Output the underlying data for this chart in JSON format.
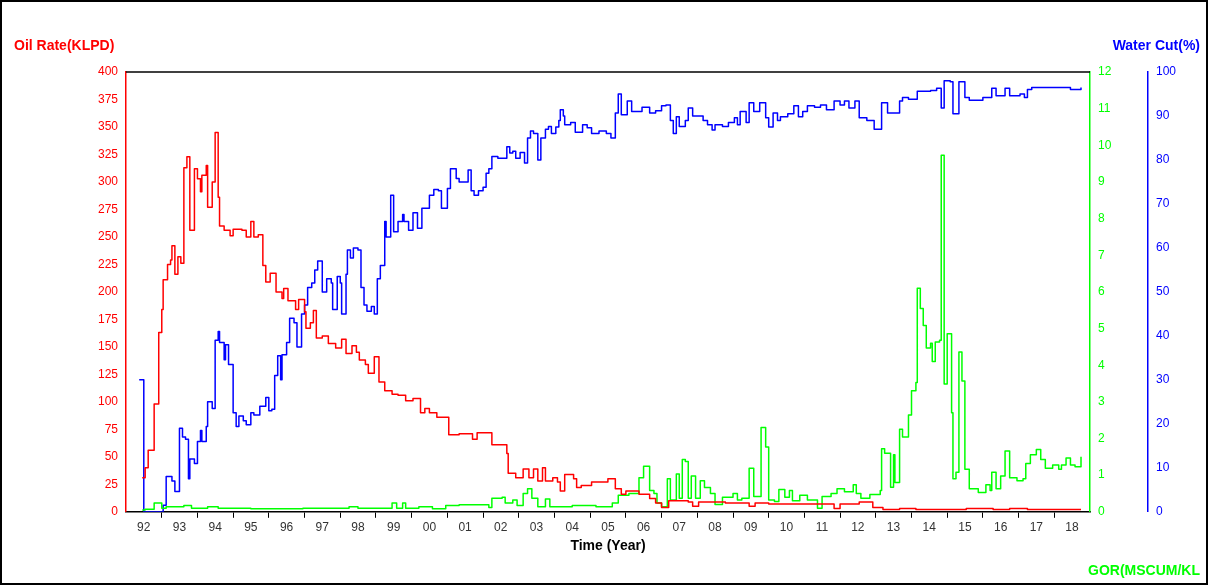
{
  "chart_data": {
    "type": "step",
    "xlabel": "Time (Year)",
    "ylabel": "Oil Rate(KLPD)",
    "y2label": "GOR(MSCUM/KL",
    "y3label": "Water Cut(%)",
    "xlim": [
      "1992",
      "2019"
    ],
    "xticks": [
      {
        "value": "1992-07",
        "label": "92"
      },
      {
        "value": "1993",
        "label": null
      },
      {
        "value": "1993-07",
        "label": "93"
      },
      {
        "value": "1994",
        "label": null
      },
      {
        "value": "1994-07",
        "label": "94"
      },
      {
        "value": "1995",
        "label": null
      },
      {
        "value": "1995-07",
        "label": "95"
      },
      {
        "value": "1996",
        "label": null
      },
      {
        "value": "1996-07",
        "label": "96"
      },
      {
        "value": "1997",
        "label": null
      },
      {
        "value": "1997-07",
        "label": "97"
      },
      {
        "value": "1998",
        "label": null
      },
      {
        "value": "1998-07",
        "label": "98"
      },
      {
        "value": "1999",
        "label": null
      },
      {
        "value": "1999-07",
        "label": "99"
      },
      {
        "value": "2000",
        "label": null
      },
      {
        "value": "2000-07",
        "label": "00"
      },
      {
        "value": "2001",
        "label": null
      },
      {
        "value": "2001-07",
        "label": "01"
      },
      {
        "value": "2002",
        "label": null
      },
      {
        "value": "2002-07",
        "label": "02"
      },
      {
        "value": "2003",
        "label": null
      },
      {
        "value": "2003-07",
        "label": "03"
      },
      {
        "value": "2004",
        "label": null
      },
      {
        "value": "2004-07",
        "label": "04"
      },
      {
        "value": "2005",
        "label": null
      },
      {
        "value": "2005-07",
        "label": "05"
      },
      {
        "value": "2006",
        "label": null
      },
      {
        "value": "2006-07",
        "label": "06"
      },
      {
        "value": "2007",
        "label": null
      },
      {
        "value": "2007-07",
        "label": "07"
      },
      {
        "value": "2008",
        "label": null
      },
      {
        "value": "2008-07",
        "label": "08"
      },
      {
        "value": "2009",
        "label": null
      },
      {
        "value": "2009-07",
        "label": "09"
      },
      {
        "value": "2010",
        "label": null
      },
      {
        "value": "2010-07",
        "label": "10"
      },
      {
        "value": "2011",
        "label": null
      },
      {
        "value": "2011-07",
        "label": "11"
      },
      {
        "value": "2012",
        "label": null
      },
      {
        "value": "2012-07",
        "label": "12"
      },
      {
        "value": "2013",
        "label": null
      },
      {
        "value": "2013-07",
        "label": "13"
      },
      {
        "value": "2014",
        "label": null
      },
      {
        "value": "2014-07",
        "label": "14"
      },
      {
        "value": "2015",
        "label": null
      },
      {
        "value": "2015-07",
        "label": "15"
      },
      {
        "value": "2016",
        "label": null
      },
      {
        "value": "2016-07",
        "label": "16"
      },
      {
        "value": "2017",
        "label": null
      },
      {
        "value": "2017-07",
        "label": "17"
      },
      {
        "value": "2018",
        "label": null
      },
      {
        "value": "2018-07",
        "label": "18"
      }
    ],
    "ylim": [
      0,
      400
    ],
    "yticks": [
      0,
      25,
      50,
      75,
      100,
      125,
      150,
      175,
      200,
      225,
      250,
      275,
      300,
      325,
      350,
      375,
      400
    ],
    "y2lim": [
      0,
      12
    ],
    "y2ticks": [
      0,
      1,
      2,
      3,
      4,
      5,
      6,
      7,
      8,
      9,
      10,
      11,
      12
    ],
    "y3lim": [
      0,
      100
    ],
    "y3ticks": [
      0,
      10,
      20,
      30,
      40,
      50,
      60,
      70,
      80,
      90,
      100
    ],
    "series": [
      {
        "color": "#ff0000",
        "axis": "y",
        "x": [
          "1992-06-15",
          "1992-07-15",
          "1992-08-15",
          "1992-10-15",
          "1992-12-01",
          "1993-01-01",
          "1993-01-15",
          "1993-03-01",
          "1993-04-01",
          "1993-04-15",
          "1993-05-15",
          "1993-06-15",
          "1993-07-15",
          "1993-08-15",
          "1993-09-15",
          "1993-10-15",
          "1993-12-01",
          "1994-01-01",
          "1994-02-01",
          "1994-02-15",
          "1994-04-01",
          "1994-04-15",
          "1994-06-01",
          "1994-07-01",
          "1994-08-01",
          "1994-08-15",
          "1994-10-01",
          "1994-12-01",
          "1995-01-01",
          "1995-04-01",
          "1995-05-15",
          "1995-07-01",
          "1995-08-01",
          "1995-09-15",
          "1995-11-01",
          "1995-12-01",
          "1996-01-15",
          "1996-03-15",
          "1996-05-15",
          "1996-06-01",
          "1996-07-15",
          "1996-10-01",
          "1996-11-01",
          "1997-01-01",
          "1997-01-15",
          "1997-03-01",
          "1997-04-01",
          "1997-05-01",
          "1997-07-01",
          "1997-09-01",
          "1997-11-15",
          "1998-01-15",
          "1998-03-01",
          "1998-05-01",
          "1998-06-15",
          "1998-07-15",
          "1998-09-15",
          "1998-10-15",
          "1998-12-15",
          "1999-02-01",
          "1999-04-01",
          "1999-06-15",
          "1999-08-15",
          "1999-11-01",
          "2000-01-15",
          "2000-04-01",
          "2000-05-15",
          "2000-07-01",
          "2000-09-15",
          "2001-01-15",
          "2001-05-01",
          "2001-09-15",
          "2001-11-01",
          "2002-04-01",
          "2002-09-01",
          "2002-09-15",
          "2002-12-01",
          "2003-02-15",
          "2003-04-15",
          "2003-06-01",
          "2003-07-15",
          "2003-09-01",
          "2003-10-01",
          "2003-12-15",
          "2004-02-01",
          "2004-03-01",
          "2004-04-15",
          "2004-07-15",
          "2004-08-15",
          "2004-10-01",
          "2005-01-15",
          "2005-07-01",
          "2005-09-15",
          "2005-11-15",
          "2006-01-01",
          "2006-05-15",
          "2006-09-01",
          "2006-11-01",
          "2007-01-01",
          "2007-03-15",
          "2007-10-01",
          "2007-11-15",
          "2008-01-15",
          "2008-10-15",
          "2009-06-15",
          "2009-08-15",
          "2010-01-01",
          "2011-11-01",
          "2012-01-01",
          "2012-07-15",
          "2012-12-01",
          "2013-03-15",
          "2013-09-01",
          "2014-02-15",
          "2015-07-15",
          "2016-04-15",
          "2016-10-01",
          "2017-04-01",
          "2018-10-01"
        ],
        "values": [
          31,
          40,
          56,
          98,
          163,
          184,
          211,
          225,
          229,
          242,
          216,
          232,
          226,
          313,
          323,
          256,
          312,
          303,
          291,
          306,
          315,
          277,
          300,
          345,
          286,
          260,
          256,
          251,
          257,
          256,
          250,
          264,
          250,
          252,
          224,
          209,
          217,
          200,
          194,
          203,
          192,
          184,
          193,
          182,
          167,
          172,
          183,
          158,
          160,
          153,
          149,
          157,
          144,
          151,
          145,
          138,
          134,
          126,
          141,
          118,
          110,
          107,
          106,
          101,
          103,
          90,
          94,
          90,
          86,
          70,
          71,
          66,
          72,
          61,
          53,
          35,
          31,
          39,
          31,
          39,
          28,
          40,
          28,
          31,
          27,
          19,
          34,
          30,
          22,
          24,
          27,
          30,
          21,
          16,
          19,
          16,
          12,
          8,
          4,
          10,
          9,
          5,
          9,
          8,
          5,
          8,
          7,
          3,
          7,
          9,
          4,
          2,
          3,
          2,
          3,
          2,
          3,
          2,
          2
        ]
      },
      {
        "color": "#00ff00",
        "axis": "y2",
        "x": [
          "1992-06-15",
          "1992-07-15",
          "1992-10-15",
          "1993-01-01",
          "1993-02-15",
          "1993-08-15",
          "1993-11-01",
          "1994-04-15",
          "1994-08-01",
          "1995-07-01",
          "1996-12-15",
          "1998-04-01",
          "1998-07-01",
          "1999-06-15",
          "1999-08-01",
          "1999-10-01",
          "1999-11-01",
          "2000-03-15",
          "2000-08-01",
          "2000-12-15",
          "2001-05-01",
          "2002-03-01",
          "2002-04-01",
          "2002-07-15",
          "2002-08-15",
          "2002-11-01",
          "2002-12-15",
          "2003-02-15",
          "2003-04-01",
          "2003-05-15",
          "2003-07-15",
          "2003-10-01",
          "2003-11-15",
          "2004-07-01",
          "2005-03-01",
          "2005-08-15",
          "2005-10-15",
          "2006-02-01",
          "2006-05-15",
          "2006-07-01",
          "2006-09-01",
          "2006-10-15",
          "2006-11-15",
          "2007-01-01",
          "2007-03-01",
          "2007-04-01",
          "2007-06-01",
          "2007-07-01",
          "2007-08-01",
          "2007-09-01",
          "2007-10-01",
          "2007-11-01",
          "2007-12-15",
          "2008-02-01",
          "2008-03-15",
          "2008-05-15",
          "2008-07-01",
          "2008-09-15",
          "2009-01-01",
          "2009-02-15",
          "2009-04-01",
          "2009-06-15",
          "2009-08-01",
          "2009-10-15",
          "2009-12-01",
          "2010-01-01",
          "2010-03-01",
          "2010-04-15",
          "2010-06-15",
          "2010-08-01",
          "2010-09-01",
          "2010-11-15",
          "2011-02-01",
          "2011-05-15",
          "2011-07-01",
          "2011-10-01",
          "2011-12-01",
          "2012-02-15",
          "2012-05-15",
          "2012-06-15",
          "2012-08-01",
          "2012-11-01",
          "2013-02-15",
          "2013-03-01",
          "2013-04-01",
          "2013-06-01",
          "2013-07-01",
          "2013-07-15",
          "2013-09-01",
          "2013-10-01",
          "2013-12-01",
          "2014-01-01",
          "2014-02-15",
          "2014-03-01",
          "2014-04-01",
          "2014-05-01",
          "2014-06-01",
          "2014-07-15",
          "2014-08-01",
          "2014-09-01",
          "2014-10-15",
          "2014-11-01",
          "2014-12-01",
          "2015-01-01",
          "2015-02-15",
          "2015-03-01",
          "2015-04-01",
          "2015-05-01",
          "2015-06-01",
          "2015-07-01",
          "2015-08-15",
          "2015-11-15",
          "2016-02-01",
          "2016-03-15",
          "2016-04-01",
          "2016-05-15",
          "2016-07-01",
          "2016-08-15",
          "2016-10-01",
          "2016-12-15",
          "2017-02-15",
          "2017-03-15",
          "2017-05-01",
          "2017-07-01",
          "2017-08-15",
          "2017-10-01",
          "2017-12-15",
          "2018-02-15",
          "2018-03-15",
          "2018-05-01",
          "2018-06-15",
          "2018-08-01",
          "2018-10-01"
        ],
        "values": [
          0.05,
          0.07,
          0.24,
          0.1,
          0.14,
          0.17,
          0.1,
          0.14,
          0.1,
          0.08,
          0.1,
          0.14,
          0.1,
          0.24,
          0.1,
          0.24,
          0.1,
          0.14,
          0.08,
          0.17,
          0.19,
          0.12,
          0.37,
          0.4,
          0.24,
          0.32,
          0.17,
          0.5,
          0.63,
          0.37,
          0.14,
          0.35,
          0.14,
          0.17,
          0.14,
          0.24,
          0.45,
          0.5,
          0.93,
          1.24,
          0.58,
          0.5,
          0.24,
          0.14,
          0.9,
          0.32,
          1.03,
          0.37,
          1.43,
          1.37,
          0.37,
          0.98,
          0.37,
          0.85,
          0.66,
          0.5,
          0.2,
          0.4,
          0.5,
          0.32,
          0.37,
          1.19,
          0.42,
          2.3,
          1.77,
          0.32,
          0.28,
          0.61,
          0.4,
          0.58,
          0.3,
          0.45,
          0.32,
          0.1,
          0.42,
          0.5,
          0.63,
          0.55,
          0.74,
          0.5,
          0.37,
          0.47,
          0.58,
          1.72,
          1.6,
          0.67,
          1.56,
          0.8,
          2.25,
          2.04,
          2.64,
          3.3,
          3.53,
          6.1,
          5.55,
          5.08,
          4.47,
          4.6,
          4.1,
          4.63,
          4.68,
          9.73,
          3.49,
          4.86,
          2.7,
          0.9,
          1.08,
          4.36,
          3.57,
          1.16,
          0.63,
          0.53,
          0.74,
          0.58,
          1.08,
          0.63,
          0.98,
          1.66,
          0.93,
          0.85,
          0.9,
          1.32,
          1.56,
          1.7,
          1.43,
          1.19,
          1.28,
          1.16,
          1.28,
          1.47,
          1.28,
          1.23,
          1.5
        ]
      },
      {
        "color": "#0000ff",
        "axis": "y3",
        "x": [
          "1992-05-15",
          "1992-07-01",
          "1993-01-15",
          "1993-02-15",
          "1993-04-15",
          "1993-05-15",
          "1993-07-01",
          "1993-08-01",
          "1993-09-01",
          "1993-10-01",
          "1993-10-15",
          "1993-12-01",
          "1994-01-01",
          "1994-02-01",
          "1994-02-15",
          "1994-04-01",
          "1994-04-15",
          "1994-06-01",
          "1994-07-01",
          "1994-08-01",
          "1994-08-15",
          "1994-10-01",
          "1994-10-15",
          "1994-11-15",
          "1995-01-01",
          "1995-02-01",
          "1995-03-01",
          "1995-04-15",
          "1995-05-15",
          "1995-07-01",
          "1995-08-01",
          "1995-10-01",
          "1995-12-01",
          "1996-01-01",
          "1996-02-01",
          "1996-03-01",
          "1996-04-01",
          "1996-05-01",
          "1996-05-15",
          "1996-07-01",
          "1996-08-01",
          "1996-09-15",
          "1996-10-15",
          "1996-12-01",
          "1997-01-01",
          "1997-02-01",
          "1997-03-15",
          "1997-04-15",
          "1997-05-15",
          "1997-07-01",
          "1997-08-15",
          "1997-10-01",
          "1997-10-15",
          "1997-12-01",
          "1998-01-01",
          "1998-01-15",
          "1998-03-01",
          "1998-03-15",
          "1998-04-15",
          "1998-05-15",
          "1998-07-01",
          "1998-08-01",
          "1998-09-01",
          "1998-10-01",
          "1998-11-15",
          "1998-12-15",
          "1999-01-15",
          "1999-02-15",
          "1999-04-01",
          "1999-04-15",
          "1999-06-01",
          "1999-07-01",
          "1999-08-15",
          "1999-10-01",
          "1999-10-15",
          "1999-12-01",
          "2000-01-15",
          "2000-03-01",
          "2000-04-15",
          "2000-07-01",
          "2000-08-15",
          "2000-10-01",
          "2000-11-01",
          "2001-01-01",
          "2001-02-01",
          "2001-04-01",
          "2001-05-01",
          "2001-08-01",
          "2001-09-01",
          "2001-10-01",
          "2001-11-15",
          "2002-01-01",
          "2002-02-01",
          "2002-03-01",
          "2002-04-01",
          "2002-06-01",
          "2002-09-01",
          "2002-10-01",
          "2002-11-01",
          "2002-12-01",
          "2003-01-15",
          "2003-03-01",
          "2003-04-01",
          "2003-05-01",
          "2003-06-01",
          "2003-07-15",
          "2003-08-15",
          "2003-10-01",
          "2003-11-01",
          "2003-12-01",
          "2004-01-15",
          "2004-02-15",
          "2004-03-01",
          "2004-04-01",
          "2004-04-15",
          "2004-06-15",
          "2004-08-01",
          "2004-10-15",
          "2004-12-01",
          "2005-01-15",
          "2005-04-01",
          "2005-06-15",
          "2005-08-01",
          "2005-09-15",
          "2005-10-15",
          "2005-11-15",
          "2006-01-15",
          "2006-03-01",
          "2006-06-15",
          "2006-09-01",
          "2006-11-01",
          "2007-01-01",
          "2007-02-15",
          "2007-04-01",
          "2007-05-01",
          "2007-06-01",
          "2007-07-01",
          "2007-09-01",
          "2007-10-01",
          "2007-11-15",
          "2008-03-01",
          "2008-04-15",
          "2008-06-01",
          "2008-07-01",
          "2008-09-15",
          "2008-11-15",
          "2009-01-15",
          "2009-02-15",
          "2009-03-15",
          "2009-05-15",
          "2009-06-15",
          "2009-08-01",
          "2009-10-01",
          "2009-12-01",
          "2010-01-01",
          "2010-02-15",
          "2010-04-01",
          "2010-05-01",
          "2010-07-15",
          "2010-09-15",
          "2010-11-01",
          "2010-12-15",
          "2011-02-01",
          "2011-04-15",
          "2011-06-15",
          "2011-08-15",
          "2011-11-01",
          "2012-01-01",
          "2012-02-15",
          "2012-04-01",
          "2012-06-01",
          "2012-07-15",
          "2012-10-01",
          "2012-12-15",
          "2013-03-01",
          "2013-05-01",
          "2013-09-01",
          "2013-10-01",
          "2013-12-01",
          "2014-03-01",
          "2014-07-15",
          "2014-09-15",
          "2014-11-01",
          "2014-12-01",
          "2015-02-01",
          "2015-03-01",
          "2015-05-01",
          "2015-07-01",
          "2015-08-15",
          "2016-01-01",
          "2016-04-01",
          "2016-05-15",
          "2016-08-15",
          "2016-10-01",
          "2017-01-15",
          "2017-03-01",
          "2017-04-01",
          "2017-05-15",
          "2018-06-15",
          "2018-10-01"
        ],
        "values": [
          30,
          0,
          1.5,
          8,
          7,
          4.6,
          19,
          17,
          16.5,
          7.5,
          12,
          11,
          16,
          18.5,
          16,
          19.4,
          25,
          23.5,
          39,
          41,
          38.5,
          34.6,
          38,
          33.5,
          22.5,
          19.4,
          21.8,
          20.7,
          19.8,
          22.5,
          22,
          24,
          26,
          23,
          23.3,
          31,
          35.5,
          30,
          35.7,
          38.5,
          44,
          43,
          37.5,
          45,
          47,
          51,
          52,
          55,
          57,
          50,
          53,
          52,
          46,
          53.5,
          52,
          45,
          54,
          59.5,
          57.7,
          60,
          59.5,
          51,
          47,
          45.6,
          46.7,
          45,
          53,
          56,
          66,
          62.5,
          72,
          63.7,
          66,
          67.6,
          66,
          64,
          68,
          64.5,
          69,
          72,
          73.3,
          73,
          69,
          73.5,
          78,
          75.8,
          75,
          77.7,
          73,
          72,
          73,
          73.8,
          77,
          78,
          80.8,
          80.4,
          83,
          81.6,
          82,
          80.4,
          81.7,
          79.3,
          85,
          86.6,
          86,
          80,
          85,
          87,
          87.6,
          86,
          87.5,
          89,
          91.4,
          90,
          88,
          88.5,
          86.3,
          88,
          87.3,
          86,
          86.6,
          86,
          85,
          90.7,
          95,
          90.3,
          93.4,
          91,
          92,
          90.7,
          91.2,
          92.3,
          92.5,
          89,
          86,
          89.8,
          87.6,
          89,
          91.8,
          90,
          89,
          88,
          86.8,
          88,
          87.6,
          88.5,
          89.6,
          88,
          91,
          88.5,
          93,
          91,
          93,
          89.6,
          87.5,
          90.7,
          89,
          89.8,
          90.5,
          92.3,
          89.8,
          91,
          92.3,
          92,
          92.5,
          91.4,
          93.4,
          92.5,
          93.4,
          91.8,
          93.4,
          89.6,
          89,
          87,
          93,
          90.7,
          93.4,
          94.2,
          93.8,
          95.6,
          95.8,
          96.3,
          91.8,
          98,
          97.8,
          90.5,
          97.8,
          94.2,
          93.6,
          94.2,
          96.3,
          94.6,
          96.3,
          94.6,
          95,
          94.2,
          96,
          96.5,
          96,
          96.5
        ]
      }
    ]
  }
}
